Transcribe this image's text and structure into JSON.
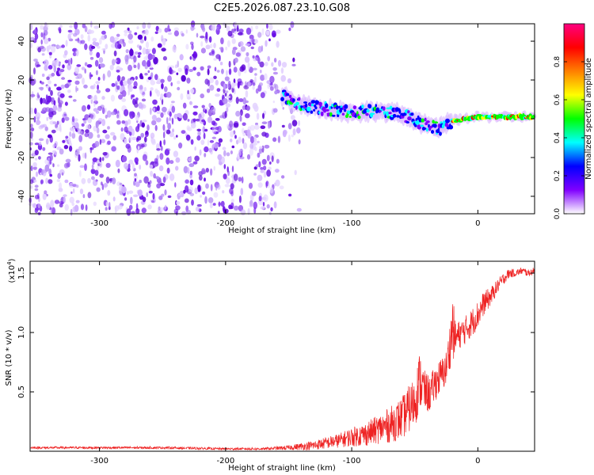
{
  "title": "C2E5.2026.087.23.10.G08",
  "chart_data": [
    {
      "type": "heatmap",
      "xlabel": "Height of straight line (km)",
      "ylabel": "Frequency (Hz)",
      "xlim": [
        -355,
        45
      ],
      "ylim": [
        -49,
        49
      ],
      "xticks": [
        -300,
        -200,
        -100,
        0
      ],
      "xtick_labels": [
        "-300",
        "-200",
        "-100",
        "0"
      ],
      "yticks": [
        -40,
        -20,
        0,
        20,
        40
      ],
      "ytick_labels": [
        "-40",
        "-20",
        "0",
        "20",
        "40"
      ],
      "noise_region_x": [
        -355,
        -160
      ],
      "signal_track": {
        "x": [
          -155,
          -140,
          -120,
          -100,
          -80,
          -60,
          -40,
          -30,
          -20,
          -10,
          0,
          20,
          45
        ],
        "y": [
          12,
          7,
          5,
          3,
          4,
          2,
          -3,
          -5,
          -1,
          0,
          1,
          1,
          1
        ]
      },
      "colorbar": {
        "label": "Normalized spectral amplitude",
        "range": [
          0,
          1
        ],
        "ticks": [
          0.0,
          0.2,
          0.4,
          0.6,
          0.8
        ],
        "tick_labels": [
          "0.0",
          "0.2",
          "0.4",
          "0.6",
          "0.8"
        ],
        "colors": [
          "#ffffff",
          "#8000ff",
          "#0000ff",
          "#00ffff",
          "#00ff00",
          "#ffff00",
          "#ff8000",
          "#ff0000",
          "#ff0080"
        ]
      }
    },
    {
      "type": "line",
      "xlabel": "Height of straight line (km)",
      "ylabel": "SNR (10 * v/v)",
      "multiplier_label": "(x10",
      "multiplier_exp": "4",
      "multiplier_close": ")",
      "xlim": [
        -355,
        45
      ],
      "ylim": [
        0,
        1.6
      ],
      "xticks": [
        -300,
        -200,
        -100,
        0
      ],
      "xtick_labels": [
        "-300",
        "-200",
        "-100",
        "0"
      ],
      "yticks": [
        0.5,
        1.0,
        1.5
      ],
      "ytick_labels": [
        "0.5",
        "1.0",
        "1.5"
      ],
      "color": "#ee2222",
      "series": [
        {
          "x": [
            -355,
            -300,
            -250,
            -200,
            -170,
            -150,
            -130,
            -110,
            -100,
            -90,
            -80,
            -70,
            -60,
            -55,
            -50,
            -46,
            -42,
            -38,
            -35,
            -32,
            -28,
            -25,
            -22,
            -20,
            -18,
            -15,
            -10,
            -5,
            0,
            5,
            10,
            15,
            20,
            25,
            30,
            35,
            40,
            45
          ],
          "y": [
            0.03,
            0.03,
            0.03,
            0.02,
            0.02,
            0.03,
            0.05,
            0.09,
            0.12,
            0.14,
            0.18,
            0.22,
            0.28,
            0.35,
            0.42,
            0.6,
            0.5,
            0.48,
            0.55,
            0.6,
            0.65,
            0.7,
            0.9,
            1.05,
            0.95,
            0.98,
            1.02,
            1.08,
            1.15,
            1.25,
            1.3,
            1.38,
            1.45,
            1.5,
            1.5,
            1.52,
            1.5,
            1.52
          ],
          "noise": [
            0.01,
            0.01,
            0.01,
            0.01,
            0.01,
            0.02,
            0.04,
            0.06,
            0.08,
            0.1,
            0.12,
            0.15,
            0.18,
            0.2,
            0.22,
            0.25,
            0.18,
            0.15,
            0.15,
            0.15,
            0.15,
            0.15,
            0.2,
            0.3,
            0.15,
            0.12,
            0.12,
            0.12,
            0.12,
            0.1,
            0.08,
            0.06,
            0.05,
            0.04,
            0.03,
            0.03,
            0.03,
            0.03
          ]
        }
      ]
    }
  ]
}
